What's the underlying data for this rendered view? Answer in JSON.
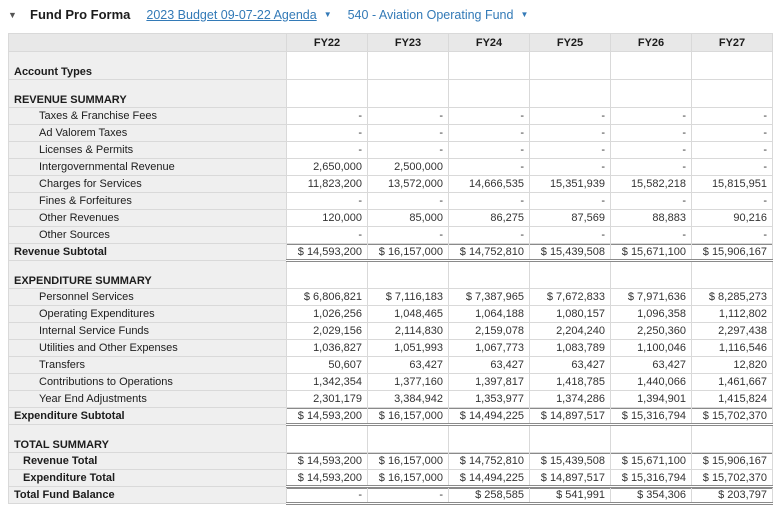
{
  "topbar": {
    "title": "Fund Pro Forma",
    "budget_selector": "2023 Budget 09-07-22 Agenda",
    "fund_selector": "540 - Aviation Operating Fund",
    "collapse_caret": "▼",
    "dropdown_caret": "▼"
  },
  "colors": {
    "link_blue": "#337ab7",
    "header_bg": "#e8e8e8",
    "label_bg": "#efefef",
    "grid_border": "#d9d9d9",
    "rule_border": "#8a8a8a"
  },
  "table": {
    "columns": [
      "FY22",
      "FY23",
      "FY24",
      "FY25",
      "FY26",
      "FY27"
    ],
    "rows": [
      {
        "label": "Account Types",
        "type": "section",
        "values": [
          "",
          "",
          "",
          "",
          "",
          ""
        ]
      },
      {
        "label": "REVENUE SUMMARY",
        "type": "section",
        "values": [
          "",
          "",
          "",
          "",
          "",
          ""
        ]
      },
      {
        "label": "Taxes & Franchise Fees",
        "type": "item",
        "values": [
          "-",
          "-",
          "-",
          "-",
          "-",
          "-"
        ]
      },
      {
        "label": "Ad Valorem Taxes",
        "type": "item",
        "values": [
          "-",
          "-",
          "-",
          "-",
          "-",
          "-"
        ]
      },
      {
        "label": "Licenses & Permits",
        "type": "item",
        "values": [
          "-",
          "-",
          "-",
          "-",
          "-",
          "-"
        ]
      },
      {
        "label": "Intergovernmental Revenue",
        "type": "item",
        "values": [
          "2,650,000",
          "2,500,000",
          "-",
          "-",
          "-",
          "-"
        ]
      },
      {
        "label": "Charges for Services",
        "type": "item",
        "values": [
          "11,823,200",
          "13,572,000",
          "14,666,535",
          "15,351,939",
          "15,582,218",
          "15,815,951"
        ]
      },
      {
        "label": "Fines & Forfeitures",
        "type": "item",
        "values": [
          "-",
          "-",
          "-",
          "-",
          "-",
          "-"
        ]
      },
      {
        "label": "Other Revenues",
        "type": "item",
        "values": [
          "120,000",
          "85,000",
          "86,275",
          "87,569",
          "88,883",
          "90,216"
        ]
      },
      {
        "label": "Other Sources",
        "type": "item",
        "values": [
          "-",
          "-",
          "-",
          "-",
          "-",
          "-"
        ]
      },
      {
        "label": "Revenue Subtotal",
        "type": "subtotal",
        "values": [
          "$ 14,593,200",
          "$ 16,157,000",
          "$ 14,752,810",
          "$ 15,439,508",
          "$ 15,671,100",
          "$ 15,906,167"
        ]
      },
      {
        "label": "EXPENDITURE SUMMARY",
        "type": "section",
        "values": [
          "",
          "",
          "",
          "",
          "",
          ""
        ]
      },
      {
        "label": "Personnel Services",
        "type": "item",
        "values": [
          "$ 6,806,821",
          "$ 7,116,183",
          "$ 7,387,965",
          "$ 7,672,833",
          "$ 7,971,636",
          "$ 8,285,273"
        ]
      },
      {
        "label": "Operating Expenditures",
        "type": "item",
        "values": [
          "1,026,256",
          "1,048,465",
          "1,064,188",
          "1,080,157",
          "1,096,358",
          "1,112,802"
        ]
      },
      {
        "label": "Internal Service Funds",
        "type": "item",
        "values": [
          "2,029,156",
          "2,114,830",
          "2,159,078",
          "2,204,240",
          "2,250,360",
          "2,297,438"
        ]
      },
      {
        "label": "Utilities and Other Expenses",
        "type": "item",
        "values": [
          "1,036,827",
          "1,051,993",
          "1,067,773",
          "1,083,789",
          "1,100,046",
          "1,116,546"
        ]
      },
      {
        "label": "Transfers",
        "type": "item",
        "values": [
          "50,607",
          "63,427",
          "63,427",
          "63,427",
          "63,427",
          "12,820"
        ]
      },
      {
        "label": "Contributions to Operations",
        "type": "item",
        "values": [
          "1,342,354",
          "1,377,160",
          "1,397,817",
          "1,418,785",
          "1,440,066",
          "1,461,667"
        ]
      },
      {
        "label": "Year End Adjustments",
        "type": "item",
        "values": [
          "2,301,179",
          "3,384,942",
          "1,353,977",
          "1,374,286",
          "1,394,901",
          "1,415,824"
        ]
      },
      {
        "label": "Expenditure Subtotal",
        "type": "subtotal",
        "values": [
          "$ 14,593,200",
          "$ 16,157,000",
          "$ 14,494,225",
          "$ 14,897,517",
          "$ 15,316,794",
          "$ 15,702,370"
        ]
      },
      {
        "label": "TOTAL SUMMARY",
        "type": "section",
        "values": [
          "",
          "",
          "",
          "",
          "",
          ""
        ]
      },
      {
        "label": "Revenue Total",
        "type": "total_first",
        "values": [
          "$ 14,593,200",
          "$ 16,157,000",
          "$ 14,752,810",
          "$ 15,439,508",
          "$ 15,671,100",
          "$ 15,906,167"
        ]
      },
      {
        "label": "Expenditure Total",
        "type": "total_last",
        "values": [
          "$ 14,593,200",
          "$ 16,157,000",
          "$ 14,494,225",
          "$ 14,897,517",
          "$ 15,316,794",
          "$ 15,702,370"
        ]
      },
      {
        "label": "Total Fund Balance",
        "type": "grand_total",
        "values": [
          "-",
          "-",
          "$ 258,585",
          "$ 541,991",
          "$ 354,306",
          "$ 203,797"
        ]
      }
    ]
  }
}
